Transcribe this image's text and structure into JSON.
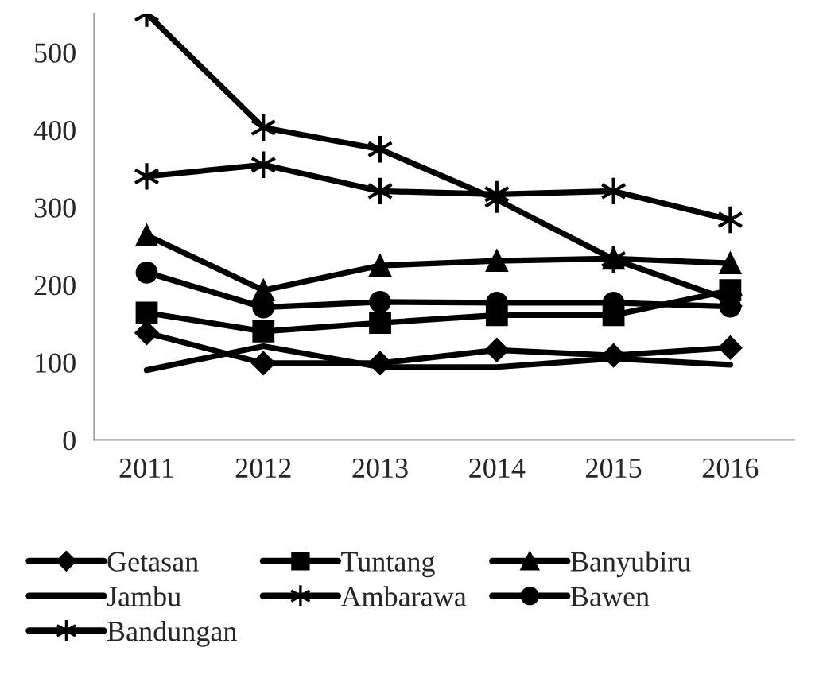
{
  "chart_data": {
    "type": "line",
    "categories": [
      "2011",
      "2012",
      "2013",
      "2014",
      "2015",
      "2016"
    ],
    "ylim": [
      0,
      550
    ],
    "yticks": [
      0,
      100,
      200,
      300,
      400,
      500
    ],
    "grid": false,
    "legend": "bottom",
    "series": [
      {
        "name": "Getasan",
        "color": "#000000",
        "marker": "diamond",
        "values": [
          138,
          99,
          99,
          116,
          109,
          119
        ]
      },
      {
        "name": "Tuntang",
        "color": "#000000",
        "marker": "square",
        "values": [
          164,
          140,
          151,
          161,
          161,
          193
        ]
      },
      {
        "name": "Banyubiru",
        "color": "#000000",
        "marker": "triangle",
        "values": [
          264,
          193,
          225,
          231,
          234,
          228
        ]
      },
      {
        "name": "Jambu",
        "color": "#000000",
        "marker": "none",
        "values": [
          90,
          121,
          94,
          94,
          105,
          97
        ]
      },
      {
        "name": "Ambarawa",
        "color": "#000000",
        "marker": "cross",
        "values": [
          550,
          403,
          375,
          310,
          233,
          180
        ]
      },
      {
        "name": "Bawen",
        "color": "#000000",
        "marker": "circle",
        "values": [
          216,
          171,
          178,
          177,
          177,
          172
        ]
      },
      {
        "name": "Bandungan",
        "color": "#000000",
        "marker": "cross",
        "values": [
          340,
          355,
          321,
          317,
          321,
          284
        ]
      }
    ]
  }
}
